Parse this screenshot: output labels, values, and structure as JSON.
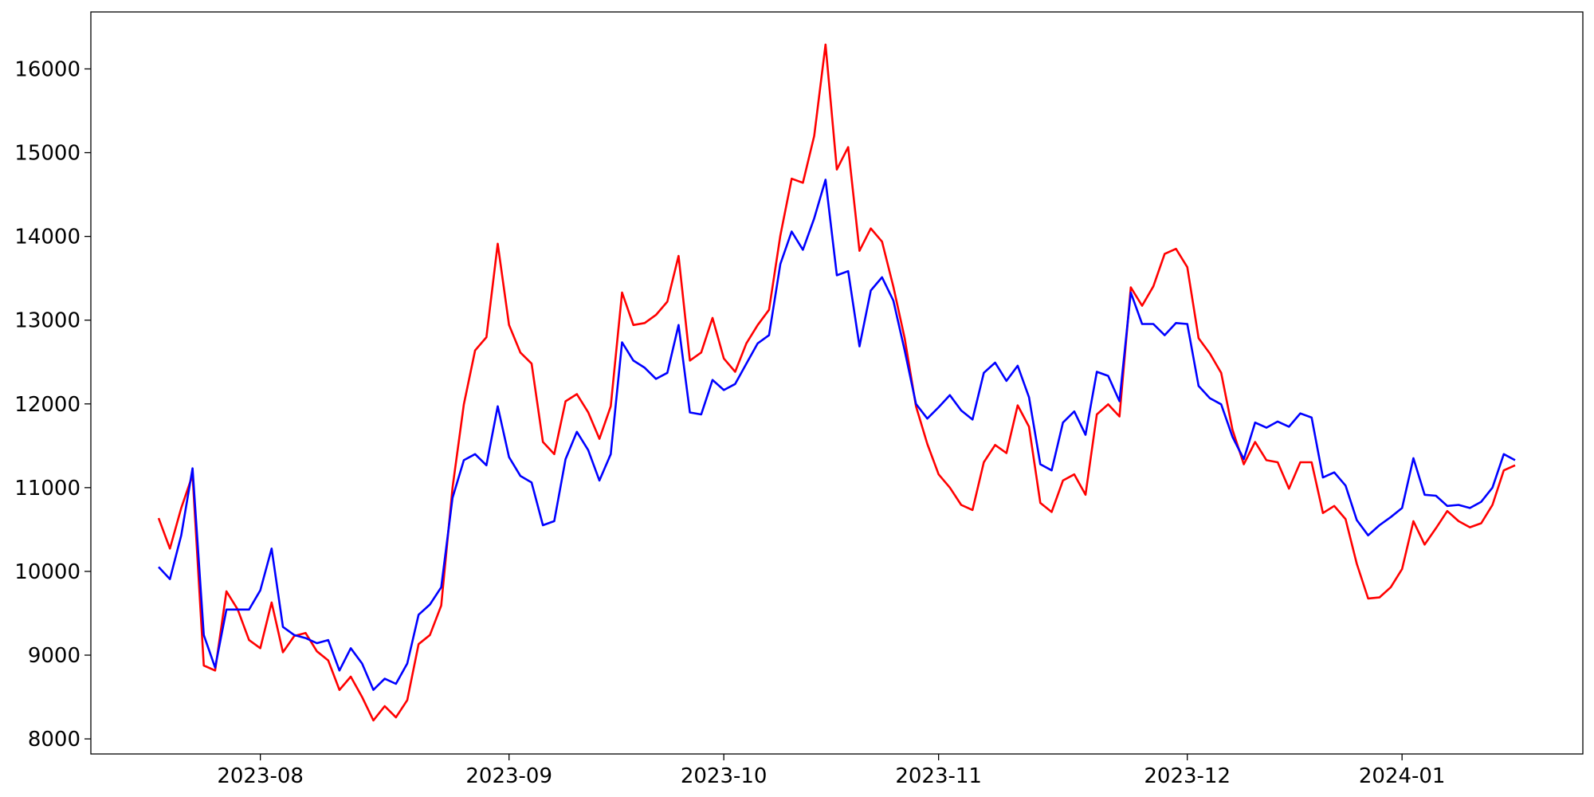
{
  "chart_data": {
    "type": "line",
    "categories": [
      null,
      null,
      null,
      null,
      null,
      null,
      null,
      null,
      null,
      "2023-08",
      null,
      null,
      null,
      null,
      null,
      null,
      null,
      null,
      null,
      null,
      null,
      null,
      null,
      null,
      null,
      null,
      null,
      null,
      null,
      null,
      null,
      "2023-09",
      null,
      null,
      null,
      null,
      null,
      null,
      null,
      null,
      null,
      null,
      null,
      null,
      null,
      null,
      null,
      null,
      null,
      null,
      "2023-10",
      null,
      null,
      null,
      null,
      null,
      null,
      null,
      null,
      null,
      null,
      null,
      null,
      null,
      null,
      null,
      null,
      null,
      null,
      "2023-11",
      null,
      null,
      null,
      null,
      null,
      null,
      null,
      null,
      null,
      null,
      null,
      null,
      null,
      null,
      null,
      null,
      null,
      null,
      null,
      null,
      null,
      "2023-12",
      null,
      null,
      null,
      null,
      null,
      null,
      null,
      null,
      null,
      null,
      null,
      null,
      null,
      null,
      null,
      null,
      null,
      null,
      "2024-01",
      null,
      null,
      null,
      null,
      null,
      null,
      null,
      null,
      null,
      null
    ],
    "series": [
      {
        "color": "#ff0000",
        "values": [
          10636,
          10272,
          10757,
          11150,
          8876,
          8816,
          9762,
          9544,
          9180,
          9083,
          9629,
          9034,
          9228,
          9265,
          9046,
          8937,
          8585,
          8743,
          8500,
          8221,
          8391,
          8257,
          8463,
          9131,
          9240,
          9592,
          11000,
          11995,
          12638,
          12796,
          13913,
          12942,
          12614,
          12481,
          11546,
          11400,
          12031,
          12117,
          11900,
          11583,
          11971,
          13330,
          12942,
          12966,
          13063,
          13221,
          13767,
          12517,
          12614,
          13027,
          12542,
          12383,
          12723,
          12942,
          13124,
          14010,
          14689,
          14641,
          15200,
          16291,
          14799,
          15066,
          13828,
          14095,
          13937,
          13400,
          12784,
          11971,
          11522,
          11158,
          11000,
          10794,
          10733,
          11303,
          11510,
          11413,
          11983,
          11728,
          10818,
          10709,
          11085,
          11158,
          10915,
          11874,
          11995,
          11850,
          13391,
          13172,
          13403,
          13791,
          13852,
          13633,
          12784,
          12602,
          12371,
          11692,
          11279,
          11546,
          11328,
          11303,
          10988,
          11303,
          11303,
          10697,
          10782,
          10624,
          10090,
          9677,
          9689,
          9811,
          10029,
          10600,
          10320,
          10515,
          10721,
          10600,
          10527,
          10575,
          10794,
          11206,
          11267
        ]
      },
      {
        "color": "#0000ff",
        "values": [
          10053,
          9908,
          10430,
          11231,
          9240,
          8852,
          9544,
          9544,
          9544,
          9774,
          10272,
          9337,
          9240,
          9204,
          9143,
          9180,
          8816,
          9083,
          8900,
          8585,
          8718,
          8657,
          8900,
          9483,
          9604,
          9811,
          10879,
          11328,
          11400,
          11267,
          11971,
          11364,
          11140,
          11061,
          10551,
          10600,
          11340,
          11667,
          11449,
          11085,
          11400,
          12735,
          12517,
          12432,
          12299,
          12371,
          12942,
          11898,
          11874,
          12286,
          12165,
          12238,
          12481,
          12723,
          12820,
          13670,
          14058,
          13840,
          14216,
          14677,
          13536,
          13585,
          12687,
          13354,
          13512,
          13233,
          12638,
          12000,
          11825,
          11960,
          12104,
          11922,
          11813,
          12371,
          12493,
          12275,
          12456,
          12080,
          11279,
          11206,
          11777,
          11910,
          11631,
          12383,
          12335,
          12032,
          13330,
          12954,
          12954,
          12820,
          12966,
          12954,
          12214,
          12068,
          11995,
          11607,
          11340,
          11777,
          11716,
          11789,
          11728,
          11886,
          11837,
          11121,
          11182,
          11024,
          10612,
          10430,
          10551,
          10648,
          10757,
          11352,
          10915,
          10903,
          10782,
          10794,
          10757,
          10831,
          11000,
          11400,
          11328
        ]
      }
    ],
    "ylim": [
      7820,
      16680
    ],
    "yticks": [
      8000,
      9000,
      10000,
      11000,
      12000,
      13000,
      14000,
      15000,
      16000
    ]
  }
}
